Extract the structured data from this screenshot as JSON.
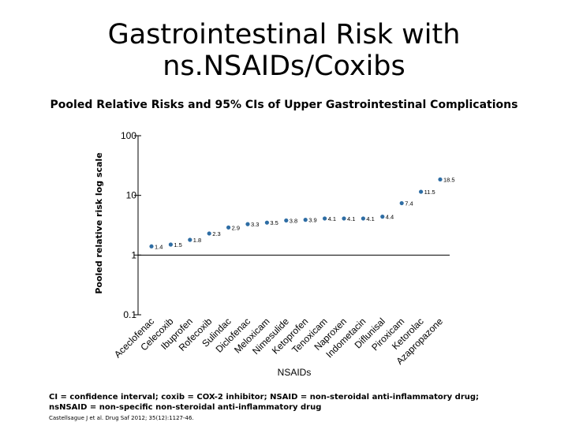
{
  "slide": {
    "title_line1": "Gastrointestinal Risk with",
    "title_line2": "ns.NSAIDs/Coxibs",
    "subtitle": "Pooled Relative Risks and 95% CIs of Upper Gastrointestinal Complications",
    "footnote_line1": "CI = confidence interval; coxib = COX-2 inhibitor; NSAID = non-steroidal anti-inflammatory drug;",
    "footnote_line2": "nsNSAID = non-specific  non-steroidal anti-inflammatory drug",
    "citation": "Castellsague J et al. Drug Saf 2012; 35(12):1127-46."
  },
  "chart_data": {
    "type": "scatter",
    "scale": "log",
    "ylabel": "Pooled relative risk log scale",
    "xlabel": "NSAIDs",
    "ylim": [
      0.1,
      100
    ],
    "yticks": [
      {
        "value": 100,
        "label": "100"
      },
      {
        "value": 10,
        "label": "10"
      },
      {
        "value": 1,
        "label": "1"
      },
      {
        "value": 0.1,
        "label": "0.1"
      }
    ],
    "marker_color": "#2e6da4",
    "axis_color": "#000000",
    "categories": [
      "Aceclofenac",
      "Celecoxib",
      "Ibuprofen",
      "Rofecoxib",
      "Sulindac",
      "Diclofenac",
      "Meloxicam",
      "Nimesulide",
      "Ketoprofen",
      "Tenoxicam",
      "Naproxen",
      "Indometacin",
      "Diflunisal",
      "Piroxicam",
      "Ketorolac",
      "Azapropazone"
    ],
    "values": [
      1.4,
      1.5,
      1.8,
      2.3,
      2.9,
      3.3,
      3.5,
      3.8,
      3.9,
      4.1,
      4.1,
      4.1,
      4.4,
      7.4,
      11.5,
      18.5
    ],
    "value_labels": [
      "1.4",
      "1.5",
      "1.8",
      "2.3",
      "2.9",
      "3.3",
      "3.5",
      "3.8",
      "3.9",
      "4.1",
      "4.1",
      "4.1",
      "4.4",
      "7.4",
      "11.5",
      "18.5"
    ]
  }
}
